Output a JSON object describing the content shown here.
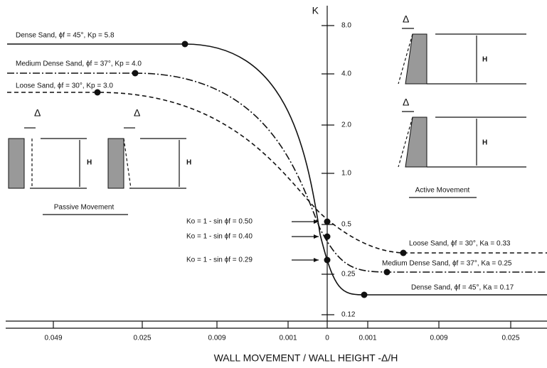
{
  "y_axis": {
    "title": "K",
    "ticks": [
      "8.0",
      "4.0",
      "2.0",
      "1.0",
      "0.5",
      "0.25",
      "0.12"
    ]
  },
  "x_axis": {
    "title": "WALL MOVEMENT / WALL HEIGHT -Δ/H",
    "ticks": [
      "0.049",
      "0.025",
      "0.009",
      "0.001",
      "0",
      "0.001",
      "0.009",
      "0.025"
    ]
  },
  "curves": [
    {
      "passive_label": "Dense Sand, ϕf = 45°, Kp = 5.8",
      "active_label": "Dense Sand, ϕf = 45°, Ka = 0.17",
      "k0_label": "Ko = 1 - sin ϕf = 0.29"
    },
    {
      "passive_label": "Medium Dense Sand, ϕf = 37°, Kp = 4.0",
      "active_label": "Medium Dense Sand, ϕf = 37°, Ka = 0.25",
      "k0_label": "Ko = 1 - sin ϕf = 0.40"
    },
    {
      "passive_label": "Loose Sand, ϕf = 30°, Kp = 3.0",
      "active_label": "Loose Sand, ϕf = 30°, Ka = 0.33",
      "k0_label": "Ko = 1 - sin ϕf = 0.50"
    }
  ],
  "diagrams": {
    "passive": {
      "title": "Passive Movement",
      "panels": [
        {
          "delta": "Δ",
          "height": "H"
        },
        {
          "delta": "Δ",
          "height": "H"
        }
      ]
    },
    "active": {
      "title": "Active Movement",
      "panels": [
        {
          "delta": "Δ",
          "height": "H"
        },
        {
          "delta": "Δ",
          "height": "H"
        }
      ]
    }
  }
}
